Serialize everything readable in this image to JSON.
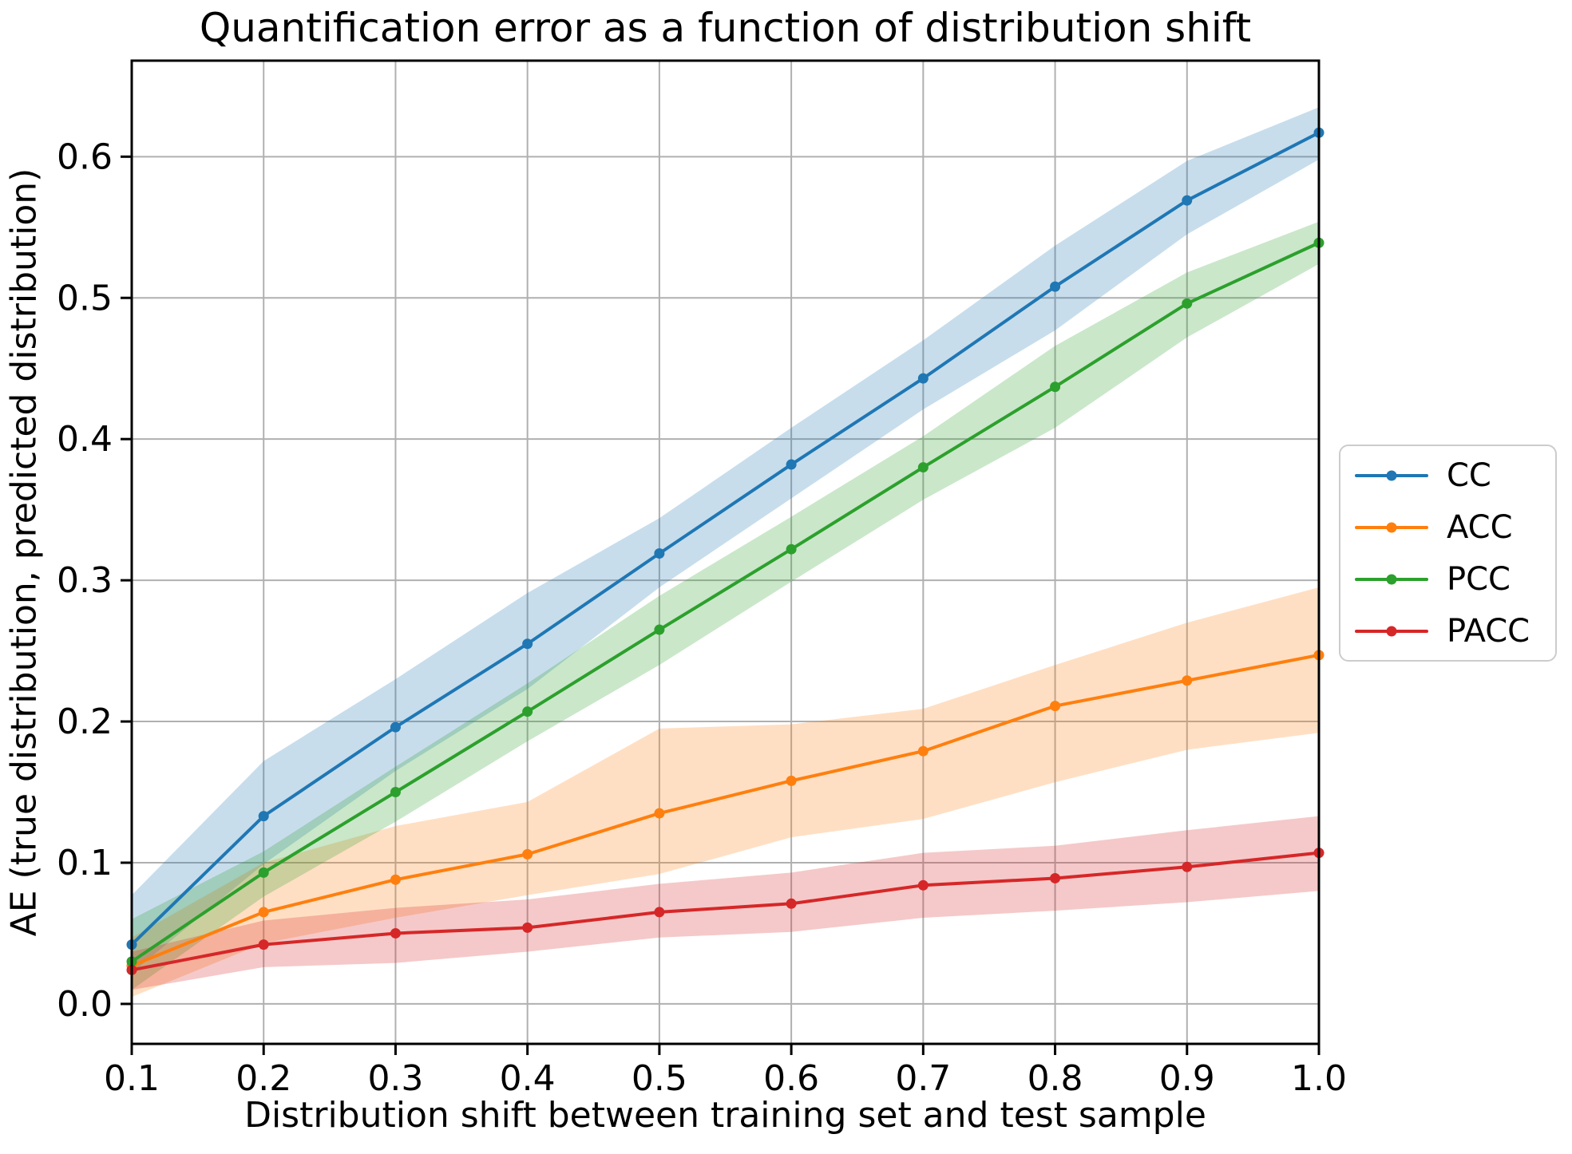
{
  "chart_data": {
    "type": "line",
    "title": "Quantification error as a function of distribution shift",
    "xlabel": "Distribution shift between training set and test sample",
    "ylabel": "AE (true distribution, predicted distribution)",
    "xlim": [
      0.1,
      1.0
    ],
    "ylim": [
      -0.0283,
      0.668
    ],
    "grid": true,
    "grid_color": "#b0b0b0",
    "band_alpha": 0.25,
    "legend_position": "center right, outside axes",
    "xticks": {
      "values": [
        0.1,
        0.2,
        0.3,
        0.4,
        0.5,
        0.6,
        0.7,
        0.8,
        0.9,
        1.0
      ],
      "labels": [
        "0.1",
        "0.2",
        "0.3",
        "0.4",
        "0.5",
        "0.6",
        "0.7",
        "0.8",
        "0.9",
        "1.0"
      ]
    },
    "yticks": {
      "values": [
        0.0,
        0.1,
        0.2,
        0.3,
        0.4,
        0.5,
        0.6
      ],
      "labels": [
        "0.0",
        "0.1",
        "0.2",
        "0.3",
        "0.4",
        "0.5",
        "0.6"
      ]
    },
    "x": [
      0.1,
      0.2,
      0.3,
      0.4,
      0.5,
      0.6,
      0.7,
      0.8,
      0.9,
      1.0
    ],
    "series": [
      {
        "name": "CC",
        "color": "#1f77b4",
        "values": [
          0.042,
          0.133,
          0.196,
          0.255,
          0.319,
          0.382,
          0.443,
          0.508,
          0.569,
          0.617
        ],
        "band_upper": [
          0.077,
          0.172,
          0.23,
          0.291,
          0.344,
          0.408,
          0.47,
          0.537,
          0.597,
          0.635
        ],
        "band_lower": [
          0.022,
          0.099,
          0.165,
          0.223,
          0.295,
          0.358,
          0.421,
          0.477,
          0.545,
          0.598
        ]
      },
      {
        "name": "ACC",
        "color": "#ff7f0e",
        "values": [
          0.027,
          0.065,
          0.088,
          0.106,
          0.135,
          0.158,
          0.179,
          0.211,
          0.229,
          0.247
        ],
        "band_upper": [
          0.047,
          0.1,
          0.126,
          0.143,
          0.195,
          0.198,
          0.209,
          0.24,
          0.27,
          0.295
        ],
        "band_lower": [
          0.005,
          0.043,
          0.061,
          0.077,
          0.092,
          0.118,
          0.131,
          0.157,
          0.18,
          0.192
        ]
      },
      {
        "name": "PCC",
        "color": "#2ca02c",
        "values": [
          0.03,
          0.093,
          0.15,
          0.207,
          0.265,
          0.322,
          0.38,
          0.437,
          0.496,
          0.539
        ],
        "band_upper": [
          0.06,
          0.108,
          0.168,
          0.227,
          0.289,
          0.345,
          0.402,
          0.466,
          0.518,
          0.554
        ],
        "band_lower": [
          0.01,
          0.076,
          0.129,
          0.186,
          0.24,
          0.299,
          0.357,
          0.408,
          0.472,
          0.524
        ]
      },
      {
        "name": "PACC",
        "color": "#d62728",
        "values": [
          0.024,
          0.042,
          0.05,
          0.054,
          0.065,
          0.071,
          0.084,
          0.089,
          0.097,
          0.107
        ],
        "band_upper": [
          0.037,
          0.059,
          0.068,
          0.074,
          0.085,
          0.093,
          0.107,
          0.112,
          0.123,
          0.133
        ],
        "band_lower": [
          0.01,
          0.026,
          0.029,
          0.037,
          0.047,
          0.051,
          0.061,
          0.066,
          0.072,
          0.08
        ]
      }
    ]
  }
}
